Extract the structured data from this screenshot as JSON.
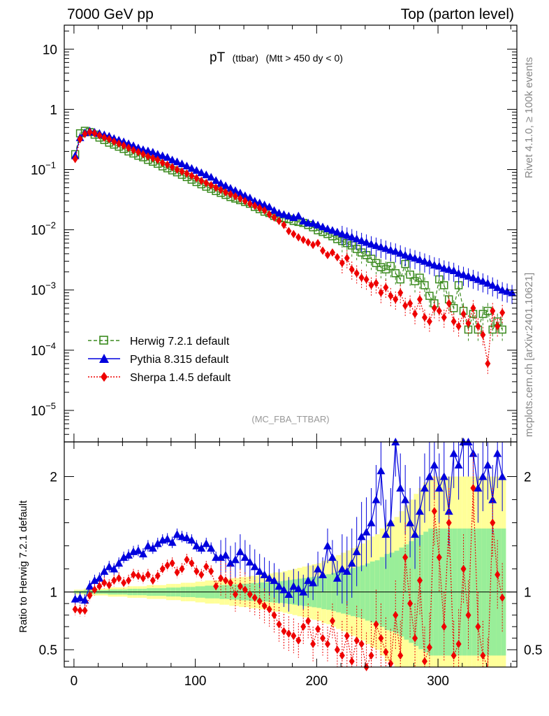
{
  "header": {
    "left": "7000 GeV pp",
    "right": "Top (parton level)"
  },
  "side_labels": {
    "top": "Rivet 4.1.0, ≥ 100k events",
    "bottom": "mcplots.cern.ch [arXiv:2401.10621]"
  },
  "watermark": "(MC_FBA_TTBAR)",
  "colors": {
    "herwig": "#3a8a1e",
    "pythia": "#0000dd",
    "sherpa": "#ee0000",
    "band_yellow": "#ffff99",
    "band_green": "#99ee99"
  },
  "chart_data": {
    "type": "line",
    "title": {
      "main": "pT",
      "sub1": "(ttbar)",
      "sub2": "(Mtt > 450 dy < 0)"
    },
    "x_ticks": [
      0,
      100,
      200,
      300
    ],
    "xlim": [
      -8,
      365
    ],
    "main_panel": {
      "yscale": "log",
      "ylim": [
        3e-06,
        25
      ],
      "y_ticks": [
        {
          "v": 10,
          "label": "10"
        },
        {
          "v": 1,
          "label": "1"
        },
        {
          "v": 0.1,
          "label": "10",
          "exp": "−1"
        },
        {
          "v": 0.01,
          "label": "10",
          "exp": "−2"
        },
        {
          "v": 0.001,
          "label": "10",
          "exp": "−3"
        },
        {
          "v": 0.0001,
          "label": "10",
          "exp": "−4"
        },
        {
          "v": 1e-05,
          "label": "10",
          "exp": "−5"
        }
      ]
    },
    "ratio_panel": {
      "ylabel": "Ratio to Herwig 7.2.1 default",
      "ylim": [
        0.35,
        2.3
      ],
      "y_ticks": [
        {
          "v": 0.5,
          "label": "0.5"
        },
        {
          "v": 1,
          "label": "1"
        },
        {
          "v": 2,
          "label": "2"
        }
      ]
    },
    "legend": [
      {
        "name": "Herwig 7.2.1 default",
        "key": "herwig"
      },
      {
        "name": "Pythia 8.315 default",
        "key": "pythia"
      },
      {
        "name": "Sherpa 1.4.5 default",
        "key": "sherpa"
      }
    ],
    "bin_width": 4,
    "series": {
      "herwig": [
        0.18,
        0.4,
        0.44,
        0.42,
        0.38,
        0.34,
        0.31,
        0.28,
        0.26,
        0.24,
        0.22,
        0.2,
        0.185,
        0.17,
        0.16,
        0.145,
        0.135,
        0.125,
        0.113,
        0.105,
        0.097,
        0.09,
        0.082,
        0.075,
        0.068,
        0.062,
        0.057,
        0.052,
        0.048,
        0.044,
        0.041,
        0.038,
        0.035,
        0.033,
        0.031,
        0.029,
        0.027,
        0.024,
        0.022,
        0.02,
        0.019,
        0.017,
        0.016,
        0.0155,
        0.015,
        0.014,
        0.0135,
        0.013,
        0.012,
        0.011,
        0.0098,
        0.0092,
        0.0085,
        0.0078,
        0.007,
        0.0065,
        0.006,
        0.0055,
        0.0048,
        0.0042,
        0.0038,
        0.0033,
        0.0028,
        0.0024,
        0.0022,
        0.0025,
        0.0019,
        0.0015,
        0.0027,
        0.0018,
        0.0014,
        0.0016,
        0.0012,
        0.0008,
        0.0006,
        0.0015,
        0.0012,
        0.0007,
        0.0005,
        0.0012,
        0.00045,
        0.00022,
        0.0004,
        0.00022,
        0.0004,
        0.00045,
        0.00022,
        0.0003,
        0.00022
      ],
      "pythia": [
        0.17,
        0.34,
        0.41,
        0.44,
        0.42,
        0.4,
        0.38,
        0.36,
        0.33,
        0.31,
        0.29,
        0.27,
        0.25,
        0.23,
        0.215,
        0.205,
        0.195,
        0.18,
        0.17,
        0.16,
        0.145,
        0.135,
        0.125,
        0.115,
        0.105,
        0.097,
        0.089,
        0.082,
        0.075,
        0.066,
        0.059,
        0.054,
        0.049,
        0.045,
        0.041,
        0.037,
        0.034,
        0.03,
        0.028,
        0.026,
        0.024,
        0.021,
        0.019,
        0.018,
        0.017,
        0.016,
        0.017,
        0.014,
        0.013,
        0.0128,
        0.012,
        0.0112,
        0.0104,
        0.0098,
        0.0092,
        0.0086,
        0.0081,
        0.0076,
        0.0071,
        0.0066,
        0.0062,
        0.0058,
        0.0055,
        0.0052,
        0.0049,
        0.0046,
        0.0044,
        0.0041,
        0.0038,
        0.0036,
        0.0034,
        0.0032,
        0.003,
        0.0028,
        0.0026,
        0.0025,
        0.0023,
        0.0022,
        0.0021,
        0.0019,
        0.0018,
        0.0017,
        0.0016,
        0.0015,
        0.0014,
        0.0013,
        0.0012,
        0.0011,
        0.001,
        0.00095,
        0.0009
      ],
      "sherpa": [
        0.15,
        0.32,
        0.39,
        0.42,
        0.4,
        0.37,
        0.34,
        0.32,
        0.29,
        0.27,
        0.25,
        0.23,
        0.21,
        0.195,
        0.18,
        0.165,
        0.155,
        0.145,
        0.13,
        0.12,
        0.11,
        0.1,
        0.093,
        0.086,
        0.079,
        0.072,
        0.065,
        0.06,
        0.055,
        0.05,
        0.046,
        0.042,
        0.039,
        0.036,
        0.033,
        0.03,
        0.027,
        0.025,
        0.023,
        0.021,
        0.018,
        0.016,
        0.014,
        0.012,
        0.0095,
        0.0085,
        0.0075,
        0.0068,
        0.0062,
        0.0056,
        0.006,
        0.0045,
        0.0038,
        0.0042,
        0.0035,
        0.0028,
        0.0034,
        0.0022,
        0.0019,
        0.0016,
        0.0015,
        0.0012,
        0.0013,
        0.0009,
        0.0011,
        0.0008,
        0.0007,
        0.0009,
        0.00055,
        0.0006,
        0.0004,
        0.0007,
        0.00035,
        0.0003,
        0.0005,
        0.00045,
        0.00035,
        0.0006,
        0.0003,
        0.00025,
        0.0004,
        0.00028,
        0.0005,
        0.00025,
        0.00018,
        6e-05,
        0.00045,
        0.00025,
        0.00042
      ]
    },
    "ratio": {
      "pythia": [
        0.94,
        0.95,
        0.93,
        1.05,
        1.1,
        1.12,
        1.18,
        1.22,
        1.2,
        1.25,
        1.3,
        1.32,
        1.35,
        1.36,
        1.33,
        1.4,
        1.38,
        1.42,
        1.45,
        1.46,
        1.43,
        1.5,
        1.48,
        1.47,
        1.45,
        1.4,
        1.38,
        1.42,
        1.38,
        1.3,
        1.3,
        1.32,
        1.25,
        1.28,
        1.35,
        1.3,
        1.26,
        1.22,
        1.18,
        1.15,
        1.12,
        1.1,
        1.05,
        1.02,
        0.98,
        1.05,
        1.03,
        1.0,
        1.1,
        1.08,
        1.2,
        1.15,
        1.4,
        1.3,
        1.12,
        1.2,
        1.18,
        1.25,
        1.35,
        1.48,
        1.52,
        1.6,
        1.8,
        2.05,
        1.5,
        1.6,
        2.3,
        1.9,
        1.8,
        1.6,
        1.5,
        1.7,
        1.9,
        2.0,
        2.1,
        1.9,
        2.0,
        1.7,
        2.2,
        2.1,
        2.3,
        2.3,
        2.2,
        1.9,
        2.0,
        2.1,
        1.8,
        2.2,
        2.0
      ],
      "sherpa": [
        0.85,
        0.84,
        0.84,
        0.97,
        1.02,
        1.05,
        1.08,
        1.06,
        1.1,
        1.12,
        1.08,
        1.1,
        1.15,
        1.14,
        1.12,
        1.15,
        1.1,
        1.14,
        1.2,
        1.23,
        1.25,
        1.17,
        1.2,
        1.28,
        1.25,
        1.18,
        1.15,
        1.22,
        1.18,
        1.05,
        1.12,
        1.1,
        1.08,
        0.98,
        1.05,
        1.02,
        0.98,
        0.95,
        0.92,
        0.88,
        0.85,
        0.8,
        0.72,
        0.66,
        0.64,
        0.62,
        0.58,
        0.7,
        0.75,
        0.55,
        0.68,
        0.6,
        0.55,
        0.75,
        0.5,
        0.45,
        0.62,
        0.4,
        0.58,
        0.55,
        0.35,
        0.45,
        0.72,
        0.6,
        0.48,
        0.38,
        0.8,
        0.45,
        1.3,
        0.9,
        0.6,
        1.1,
        0.4,
        0.52,
        1.7,
        1.3,
        0.7,
        1.6,
        0.45,
        0.55,
        1.2,
        0.8,
        1.9,
        0.7,
        0.45,
        0.3,
        1.6,
        1.15,
        0.95
      ],
      "band_rel": [
        0.02,
        0.02,
        0.03,
        0.03,
        0.03,
        0.03,
        0.03,
        0.04,
        0.04,
        0.04,
        0.04,
        0.05,
        0.05,
        0.05,
        0.05,
        0.06,
        0.06,
        0.06,
        0.06,
        0.07,
        0.07,
        0.07,
        0.08,
        0.08,
        0.08,
        0.09,
        0.09,
        0.1,
        0.1,
        0.1,
        0.11,
        0.11,
        0.12,
        0.12,
        0.13,
        0.13,
        0.14,
        0.14,
        0.15,
        0.15,
        0.16,
        0.17,
        0.17,
        0.18,
        0.19,
        0.2,
        0.21,
        0.22,
        0.23,
        0.24,
        0.25,
        0.27,
        0.28,
        0.3,
        0.32,
        0.34,
        0.36,
        0.38,
        0.4,
        0.42,
        0.45,
        0.48,
        0.5,
        0.55,
        0.6,
        0.62,
        0.65,
        0.7,
        0.75,
        0.8,
        0.85,
        0.9,
        0.95,
        1.0,
        1.0,
        1.0,
        1.0,
        1.0,
        1.0,
        1.0,
        1.0,
        1.0,
        1.0,
        1.0,
        1.0,
        1.0,
        1.0,
        1.0,
        1.0
      ]
    }
  }
}
